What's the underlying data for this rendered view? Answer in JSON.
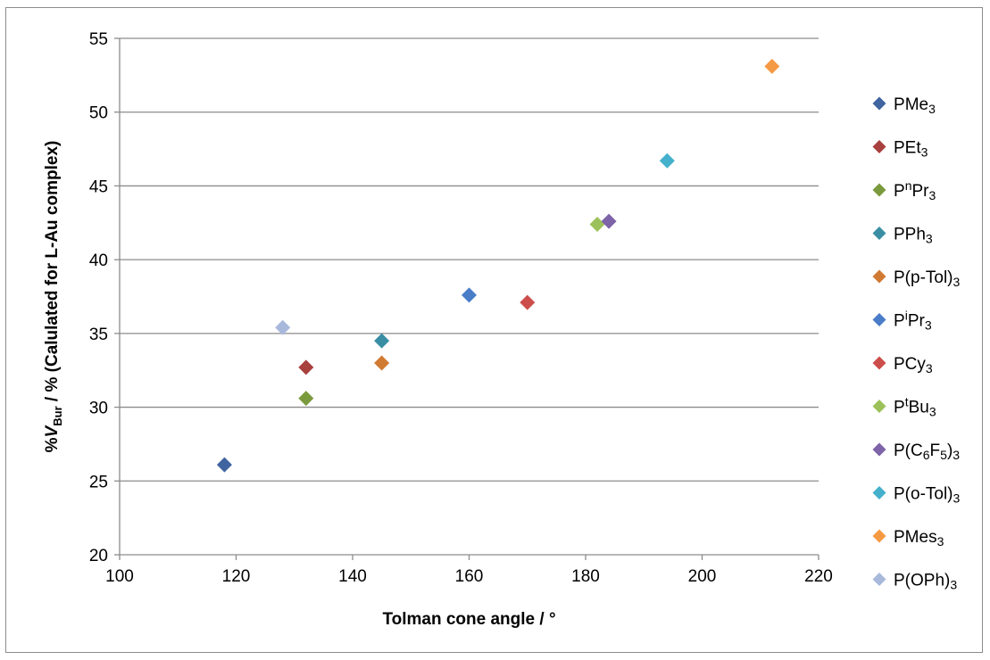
{
  "chart_data": {
    "type": "scatter",
    "xlabel": "Tolman cone angle / °",
    "ylabel": {
      "prefix": "%",
      "italic": "V",
      "subscript": "Bur",
      "suffix": " / % (Calulated for L-Au complex)"
    },
    "xlim": [
      100,
      220
    ],
    "ylim": [
      20,
      55
    ],
    "x_ticks": [
      100,
      120,
      140,
      160,
      180,
      200,
      220
    ],
    "y_ticks": [
      20,
      25,
      30,
      35,
      40,
      45,
      50,
      55
    ],
    "grid": "horizontal",
    "legend_position": "right",
    "marker": "diamond",
    "series": [
      {
        "name": "PMe3",
        "label_parts": [
          [
            "P",
            ""
          ],
          [
            "Me",
            ""
          ],
          [
            "3",
            "sub"
          ]
        ],
        "color": "#3f64a0",
        "x": 118,
        "y": 26.1
      },
      {
        "name": "PEt3",
        "label_parts": [
          [
            "PEt",
            ""
          ],
          [
            "3",
            "sub"
          ]
        ],
        "color": "#a8403e",
        "x": 132,
        "y": 32.7
      },
      {
        "name": "PnPr3",
        "label_parts": [
          [
            "P",
            ""
          ],
          [
            "n",
            "sup"
          ],
          [
            "Pr",
            ""
          ],
          [
            "3",
            "sub"
          ]
        ],
        "color": "#7b9a3e",
        "x": 132,
        "y": 30.6
      },
      {
        "name": "PPh3",
        "label_parts": [
          [
            "PPh",
            ""
          ],
          [
            "3",
            "sub"
          ]
        ],
        "color": "#3a8ea4",
        "x": 145,
        "y": 34.5
      },
      {
        "name": "P(p-Tol)3",
        "label_parts": [
          [
            "P(p-Tol)",
            ""
          ],
          [
            "3",
            "sub"
          ]
        ],
        "color": "#d07a32",
        "x": 145,
        "y": 33.0
      },
      {
        "name": "PiPr3",
        "label_parts": [
          [
            "P",
            ""
          ],
          [
            "i",
            "sup"
          ],
          [
            "Pr",
            ""
          ],
          [
            "3",
            "sub"
          ]
        ],
        "color": "#4a7cc8",
        "x": 160,
        "y": 37.6
      },
      {
        "name": "PCy3",
        "label_parts": [
          [
            "PCy",
            ""
          ],
          [
            "3",
            "sub"
          ]
        ],
        "color": "#cc4e4a",
        "x": 170,
        "y": 37.1
      },
      {
        "name": "PtBu3",
        "label_parts": [
          [
            "P",
            ""
          ],
          [
            "t",
            "sup"
          ],
          [
            "Bu",
            ""
          ],
          [
            "3",
            "sub"
          ]
        ],
        "color": "#9cc15a",
        "x": 182,
        "y": 42.4
      },
      {
        "name": "P(C6F5)3",
        "label_parts": [
          [
            "P(C",
            ""
          ],
          [
            "6",
            "sub"
          ],
          [
            "F",
            ""
          ],
          [
            "5",
            "sub"
          ],
          [
            ")",
            ""
          ],
          [
            "3",
            "sub"
          ]
        ],
        "color": "#7e63a8",
        "x": 184,
        "y": 42.6
      },
      {
        "name": "P(o-Tol)3",
        "label_parts": [
          [
            "P(o-Tol)",
            ""
          ],
          [
            "3",
            "sub"
          ]
        ],
        "color": "#44b0cc",
        "x": 194,
        "y": 46.7
      },
      {
        "name": "PMes3",
        "label_parts": [
          [
            "PMes",
            ""
          ],
          [
            "3",
            "sub"
          ]
        ],
        "color": "#f59a44",
        "x": 212,
        "y": 53.1
      },
      {
        "name": "P(OPh)3",
        "label_parts": [
          [
            "P(OPh)",
            ""
          ],
          [
            "3",
            "sub"
          ]
        ],
        "color": "#a9b9dc",
        "x": 128,
        "y": 35.4
      }
    ]
  }
}
